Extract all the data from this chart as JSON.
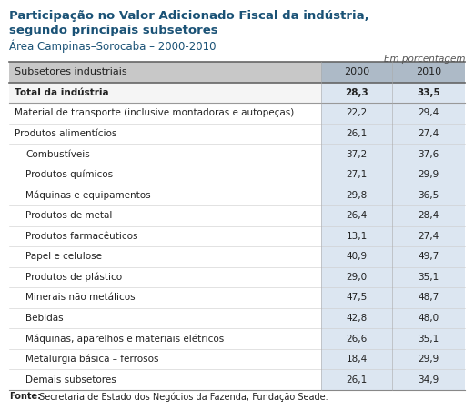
{
  "title_line1": "Participação no Valor Adicionado Fiscal da indústria,",
  "title_line2": "segundo principais subsetores",
  "subtitle": "Área Campinas–Sorocaba – 2000-2010",
  "unit_label": "Em porcentagem",
  "col_header": "Subsetores industriais",
  "col_2000": "2000",
  "col_2010": "2010",
  "rows": [
    {
      "label": "Total da indústria",
      "val2000": "28,3",
      "val2010": "33,5",
      "bold": true,
      "indent": 0
    },
    {
      "label": "Material de transporte (inclusive montadoras e autopeças)",
      "val2000": "22,2",
      "val2010": "29,4",
      "bold": false,
      "indent": 0
    },
    {
      "label": "Produtos alimentícios",
      "val2000": "26,1",
      "val2010": "27,4",
      "bold": false,
      "indent": 0
    },
    {
      "label": "Combustíveis",
      "val2000": "37,2",
      "val2010": "37,6",
      "bold": false,
      "indent": 1
    },
    {
      "label": "Produtos químicos",
      "val2000": "27,1",
      "val2010": "29,9",
      "bold": false,
      "indent": 1
    },
    {
      "label": "Máquinas e equipamentos",
      "val2000": "29,8",
      "val2010": "36,5",
      "bold": false,
      "indent": 1
    },
    {
      "label": "Produtos de metal",
      "val2000": "26,4",
      "val2010": "28,4",
      "bold": false,
      "indent": 1
    },
    {
      "label": "Produtos farmacêuticos",
      "val2000": "13,1",
      "val2010": "27,4",
      "bold": false,
      "indent": 1
    },
    {
      "label": "Papel e celulose",
      "val2000": "40,9",
      "val2010": "49,7",
      "bold": false,
      "indent": 1
    },
    {
      "label": "Produtos de plástico",
      "val2000": "29,0",
      "val2010": "35,1",
      "bold": false,
      "indent": 1
    },
    {
      "label": "Minerais não metálicos",
      "val2000": "47,5",
      "val2010": "48,7",
      "bold": false,
      "indent": 1
    },
    {
      "label": "Bebidas",
      "val2000": "42,8",
      "val2010": "48,0",
      "bold": false,
      "indent": 1
    },
    {
      "label": "Máquinas, aparelhos e materiais elétricos",
      "val2000": "26,6",
      "val2010": "35,1",
      "bold": false,
      "indent": 1
    },
    {
      "label": "Metalurgia básica – ferrosos",
      "val2000": "18,4",
      "val2010": "29,9",
      "bold": false,
      "indent": 1
    },
    {
      "label": "Demais subsetores",
      "val2000": "26,1",
      "val2010": "34,9",
      "bold": false,
      "indent": 1
    }
  ],
  "footer_bold": "Fonte:",
  "footer_normal": " Secretaria de Estado dos Negócios da Fazenda; Fundação Seade.",
  "title_color": "#1a5276",
  "subtitle_color": "#1a5276",
  "header_bg_color": "#C8C8C8",
  "col_shading_color": "#dce6f1",
  "text_color": "#222222",
  "font_size": 7.5,
  "title_font_size": 9.5,
  "subtitle_font_size": 8.5,
  "footer_font_size": 7.0,
  "unit_font_size": 7.5
}
